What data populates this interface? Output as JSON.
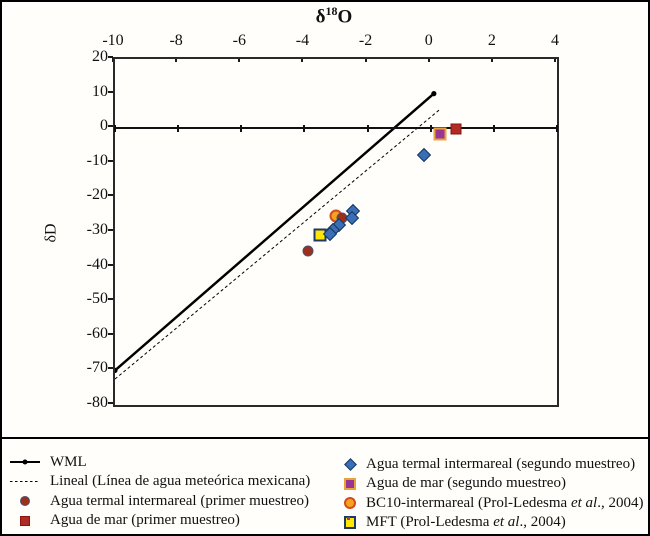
{
  "figure": {
    "title": {
      "delta": "δ",
      "sup": "18",
      "tail": "O"
    },
    "ylabel": "δD"
  },
  "chart_data": {
    "type": "scatter",
    "title": "δ18O (x-axis, top) vs δD (y-axis)",
    "xlabel": "δ18O",
    "ylabel": "δD",
    "xlim": [
      -10,
      4
    ],
    "ylim": [
      -80,
      20
    ],
    "xticks": [
      -10,
      -8,
      -6,
      -4,
      -2,
      0,
      2,
      4
    ],
    "yticks": [
      20,
      10,
      0,
      -10,
      -20,
      -30,
      -40,
      -50,
      -60,
      -70,
      -80
    ],
    "grid": false,
    "legend_position": "bottom",
    "lines": [
      {
        "name": "WML",
        "style": "solid",
        "width": 2.5,
        "endpoint_markers": true,
        "points": [
          [
            -10,
            -70
          ],
          [
            0.1,
            10
          ]
        ]
      },
      {
        "name": "Lineal (Línea de agua meteórica mexicana)",
        "style": "dashed",
        "width": 1,
        "endpoint_markers": false,
        "points": [
          [
            -10,
            -72.5
          ],
          [
            0.3,
            5.5
          ]
        ]
      }
    ],
    "series": [
      {
        "name": "BC10-intermareal (Prol-Ledesma et al., 2004)",
        "marker": "circle-orange",
        "points": [
          [
            -3.0,
            -25.3
          ]
        ]
      },
      {
        "name": "MFT (Prol-Ledesma et al., 2004)",
        "marker": "square-yellow",
        "points": [
          [
            -3.5,
            -31
          ]
        ]
      },
      {
        "name": "Agua termal intermareal (primer muestreo)",
        "marker": "circle-maroon",
        "points": [
          [
            -2.8,
            -26
          ],
          [
            -3.9,
            -35.5
          ]
        ]
      },
      {
        "name": "Agua de mar (primer muestreo)",
        "marker": "square-darkred",
        "points": [
          [
            0.8,
            -0.3
          ]
        ]
      },
      {
        "name": "Agua termal intermareal (segundo muestreo)",
        "marker": "diamond-blue",
        "points": [
          [
            -0.2,
            -7.8
          ],
          [
            -2.45,
            -24
          ],
          [
            -2.5,
            -26
          ],
          [
            -2.9,
            -28
          ],
          [
            -3.1,
            -29.5
          ],
          [
            -3.2,
            -30.5
          ]
        ]
      },
      {
        "name": "Agua de mar (segundo muestreo)",
        "marker": "square-purple",
        "points": [
          [
            0.3,
            -1.7
          ]
        ]
      }
    ],
    "colors": {
      "line": "#000000",
      "diamond_blue_fill": "#3A6EB5",
      "diamond_blue_edge": "#17375E",
      "circle_maroon_fill": "#9E2F1C",
      "circle_maroon_edge": "#44546A",
      "square_darkred_fill": "#AF2B24",
      "square_purple_fill": "#993594",
      "square_purple_edge": "#E8A33D",
      "circle_orange_fill": "#F5A21F",
      "circle_orange_edge": "#D34A1E",
      "square_yellow_fill": "#FFE604",
      "square_yellow_edge": "#203864"
    }
  },
  "legend": {
    "left": [
      {
        "swatch": "line-wml",
        "pre": "WML",
        "it": "",
        "post": ""
      },
      {
        "swatch": "line-dashed",
        "pre": "Lineal (Línea de agua meteórica mexicana)",
        "it": "",
        "post": ""
      },
      {
        "swatch": "circle-maroon",
        "pre": "Agua termal intermareal (primer muestreo)",
        "it": "",
        "post": ""
      },
      {
        "swatch": "square-darkred",
        "pre": "Agua de mar (primer muestreo)",
        "it": "",
        "post": ""
      }
    ],
    "right": [
      {
        "swatch": "diamond-blue",
        "pre": "Agua termal intermareal (segundo muestreo)",
        "it": "",
        "post": ""
      },
      {
        "swatch": "square-purple",
        "pre": "Agua de mar (segundo muestreo)",
        "it": "",
        "post": ""
      },
      {
        "swatch": "circle-orange",
        "pre": "BC10-intermareal (Prol-Ledesma ",
        "it": "et al",
        "post": "., 2004)"
      },
      {
        "swatch": "square-yellow-dot",
        "pre": "MFT (Prol-Ledesma ",
        "it": "et al",
        "post": "., 2004)"
      }
    ]
  }
}
